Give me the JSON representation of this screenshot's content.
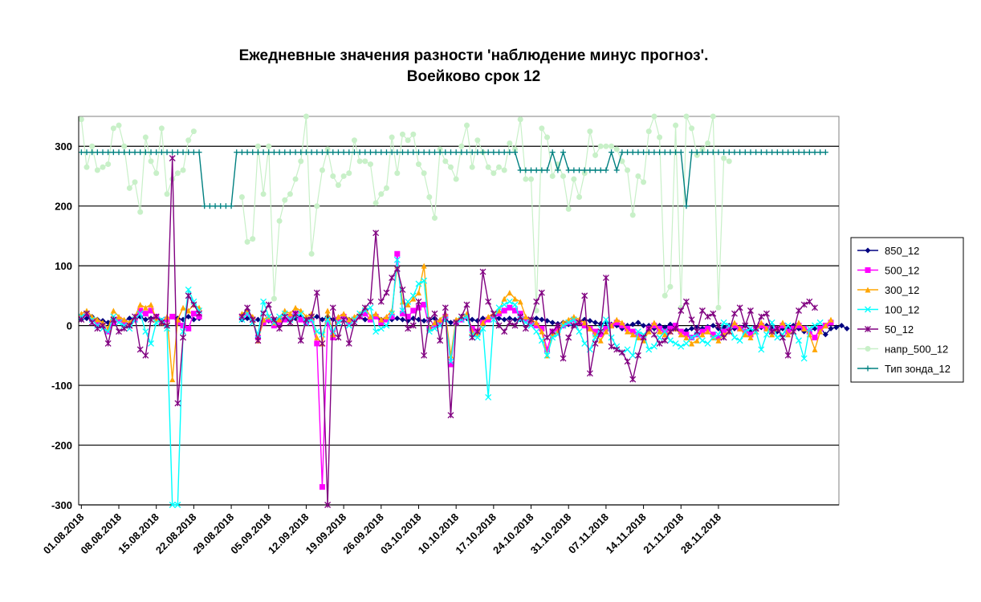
{
  "chart_data": {
    "type": "line",
    "title": "Ежедневные значения разности 'наблюдение минус прогноз'.",
    "subtitle": "Воейково    срок 12",
    "xlabel": "",
    "ylabel": "",
    "ylim": [
      -300,
      350
    ],
    "yticks": [
      "300",
      "200",
      "100",
      "0",
      "-100",
      "-200",
      "-300"
    ],
    "ytick_values": [
      300,
      200,
      100,
      0,
      -100,
      -200,
      -300
    ],
    "x_start": "01.08.2018",
    "x_tick_labels": [
      "01.08.2018",
      "08.08.2018",
      "15.08.2018",
      "22.08.2018",
      "29.08.2018",
      "05.09.2018",
      "12.09.2018",
      "19.09.2018",
      "26.09.2018",
      "03.10.2018",
      "10.10.2018",
      "17.10.2018",
      "24.10.2018",
      "31.10.2018",
      "07.11.2018",
      "14.11.2018",
      "21.11.2018",
      "28.11.2018"
    ],
    "grid": "horizontal",
    "legend_position": "right",
    "series": [
      {
        "name": "850_12",
        "color": "#000080",
        "marker": "diamond",
        "values": [
          10,
          12,
          15,
          10,
          8,
          5,
          12,
          10,
          8,
          12,
          10,
          15,
          10,
          12,
          15,
          8,
          10,
          15,
          12,
          10,
          15,
          10,
          12,
          null,
          null,
          null,
          null,
          null,
          null,
          null,
          10,
          12,
          8,
          10,
          5,
          8,
          10,
          12,
          10,
          8,
          12,
          15,
          10,
          12,
          15,
          10,
          15,
          10,
          12,
          15,
          10,
          12,
          15,
          10,
          12,
          15,
          10,
          12,
          10,
          12,
          10,
          8,
          12,
          10,
          8,
          10,
          12,
          8,
          10,
          5,
          8,
          10,
          12,
          10,
          8,
          12,
          10,
          15,
          12,
          10,
          12,
          10,
          10,
          8,
          10,
          12,
          10,
          8,
          5,
          3,
          5,
          2,
          0,
          5,
          10,
          8,
          5,
          3,
          5,
          2,
          0,
          -5,
          0,
          2,
          5,
          0,
          0,
          -5,
          0,
          -3,
          2,
          -5,
          -10,
          -8,
          -5,
          -3,
          -5,
          -2,
          0,
          -5,
          -3,
          0,
          -5,
          -3,
          0,
          -8,
          -5,
          -3,
          0,
          -5,
          -10,
          -5,
          -3,
          0,
          -5,
          -10,
          -8,
          -5,
          -3,
          -15,
          -5,
          -3,
          0,
          -5
        ]
      },
      {
        "name": "500_12",
        "color": "#FF00FF",
        "marker": "square",
        "values": [
          15,
          20,
          10,
          5,
          0,
          -10,
          5,
          10,
          5,
          0,
          10,
          25,
          20,
          25,
          15,
          5,
          10,
          15,
          5,
          0,
          -5,
          20,
          15,
          null,
          null,
          null,
          null,
          null,
          null,
          null,
          15,
          20,
          10,
          -20,
          5,
          10,
          0,
          5,
          10,
          15,
          20,
          10,
          5,
          10,
          -30,
          -270,
          5,
          -20,
          10,
          15,
          5,
          10,
          15,
          20,
          10,
          15,
          5,
          10,
          15,
          120,
          20,
          15,
          25,
          30,
          35,
          -5,
          0,
          5,
          15,
          -65,
          5,
          10,
          15,
          -5,
          -10,
          5,
          10,
          15,
          20,
          25,
          30,
          25,
          20,
          10,
          5,
          0,
          -5,
          -40,
          -10,
          -5,
          0,
          5,
          10,
          5,
          0,
          -5,
          -10,
          -15,
          -5,
          0,
          5,
          0,
          -5,
          -10,
          -15,
          -20,
          -5,
          0,
          -5,
          -10,
          -5,
          0,
          -10,
          -15,
          -20,
          -15,
          -10,
          -5,
          -15,
          -20,
          -10,
          -5,
          0,
          -5,
          -10,
          -15,
          -5,
          0,
          -5,
          -10,
          -5,
          0,
          -10,
          -5,
          0,
          -5,
          -10,
          -20,
          -5,
          0,
          5
        ]
      },
      {
        "name": "300_12",
        "color": "#FFA500",
        "marker": "triangle",
        "values": [
          20,
          25,
          15,
          10,
          5,
          -5,
          25,
          15,
          10,
          5,
          15,
          35,
          30,
          35,
          10,
          5,
          15,
          -90,
          10,
          30,
          25,
          35,
          30,
          null,
          null,
          null,
          null,
          null,
          null,
          null,
          20,
          25,
          15,
          -25,
          10,
          15,
          5,
          10,
          25,
          20,
          30,
          25,
          15,
          20,
          -20,
          -30,
          25,
          -15,
          15,
          20,
          10,
          15,
          20,
          30,
          15,
          20,
          10,
          15,
          25,
          100,
          40,
          35,
          45,
          55,
          100,
          -5,
          5,
          10,
          20,
          -50,
          10,
          15,
          20,
          -10,
          -15,
          5,
          15,
          20,
          25,
          45,
          55,
          45,
          40,
          15,
          10,
          5,
          -10,
          -50,
          -15,
          -10,
          5,
          10,
          15,
          10,
          5,
          -5,
          -15,
          -25,
          -10,
          0,
          10,
          5,
          -10,
          -15,
          -20,
          -25,
          -10,
          5,
          -10,
          -15,
          -10,
          -5,
          -15,
          -20,
          -30,
          -25,
          -15,
          -10,
          -20,
          -25,
          -15,
          -10,
          5,
          -5,
          -15,
          -20,
          -10,
          5,
          -5,
          -15,
          -5,
          5,
          -15,
          -10,
          5,
          -5,
          -15,
          -40,
          -10,
          0,
          10
        ]
      },
      {
        "name": "100_12",
        "color": "#00FFFF",
        "marker": "x",
        "values": [
          15,
          20,
          10,
          0,
          -5,
          -10,
          15,
          5,
          0,
          -5,
          10,
          20,
          -10,
          -30,
          5,
          10,
          -5,
          -300,
          -300,
          -10,
          60,
          40,
          25,
          null,
          null,
          null,
          null,
          null,
          null,
          null,
          10,
          20,
          5,
          -15,
          40,
          15,
          5,
          15,
          20,
          10,
          15,
          20,
          5,
          10,
          -10,
          -15,
          10,
          -10,
          5,
          10,
          0,
          10,
          20,
          25,
          30,
          -10,
          -5,
          0,
          20,
          110,
          25,
          40,
          50,
          70,
          75,
          -10,
          -5,
          0,
          10,
          -60,
          5,
          10,
          15,
          -15,
          -20,
          -5,
          -120,
          10,
          30,
          35,
          40,
          35,
          10,
          5,
          0,
          -10,
          -25,
          -50,
          -20,
          -15,
          0,
          5,
          10,
          -10,
          -30,
          -40,
          -20,
          -5,
          10,
          -20,
          -35,
          -45,
          -40,
          -50,
          -10,
          -15,
          -40,
          -35,
          -20,
          -10,
          -25,
          -30,
          -35,
          -30,
          -20,
          -15,
          -25,
          -30,
          -20,
          -15,
          5,
          0,
          -20,
          -25,
          -10,
          -5,
          -10,
          -40,
          -15,
          5,
          -20,
          -15,
          0,
          -10,
          -25,
          -55,
          -5,
          0,
          5
        ]
      },
      {
        "name": "50_12",
        "color": "#800080",
        "marker": "star",
        "values": [
          10,
          20,
          5,
          -5,
          0,
          -30,
          10,
          -10,
          -5,
          0,
          15,
          -40,
          -50,
          10,
          15,
          5,
          0,
          280,
          -130,
          -20,
          50,
          35,
          20,
          null,
          null,
          null,
          null,
          null,
          null,
          null,
          15,
          30,
          10,
          -25,
          20,
          35,
          10,
          -5,
          15,
          5,
          20,
          -25,
          10,
          15,
          55,
          -30,
          -300,
          30,
          -20,
          10,
          -30,
          5,
          15,
          30,
          40,
          155,
          40,
          55,
          80,
          95,
          60,
          -5,
          0,
          40,
          -50,
          10,
          20,
          -25,
          30,
          -150,
          5,
          15,
          35,
          -20,
          -10,
          90,
          40,
          20,
          0,
          -10,
          5,
          0,
          15,
          -5,
          10,
          40,
          55,
          -20,
          -10,
          0,
          -55,
          -20,
          0,
          5,
          50,
          -80,
          -30,
          -10,
          80,
          -35,
          -40,
          -45,
          -60,
          -90,
          -50,
          -20,
          -5,
          -15,
          -30,
          -25,
          -10,
          -5,
          25,
          40,
          10,
          -10,
          25,
          15,
          20,
          0,
          -20,
          -10,
          20,
          30,
          0,
          25,
          -5,
          15,
          20,
          -10,
          -5,
          -20,
          -50,
          -10,
          25,
          35,
          40,
          30
        ]
      },
      {
        "name": "напр_500_12",
        "color": "#C8F0C8",
        "marker": "circle",
        "values": [
          345,
          265,
          300,
          260,
          265,
          270,
          330,
          335,
          300,
          230,
          240,
          190,
          315,
          275,
          255,
          330,
          220,
          245,
          255,
          260,
          310,
          325,
          null,
          null,
          null,
          null,
          null,
          null,
          null,
          null,
          215,
          140,
          145,
          300,
          220,
          300,
          45,
          175,
          210,
          220,
          245,
          275,
          350,
          120,
          200,
          260,
          295,
          250,
          235,
          250,
          255,
          310,
          275,
          275,
          270,
          205,
          220,
          230,
          315,
          255,
          320,
          310,
          320,
          270,
          255,
          215,
          180,
          295,
          275,
          265,
          245,
          300,
          335,
          265,
          310,
          290,
          265,
          255,
          265,
          260,
          305,
          295,
          345,
          245,
          245,
          25,
          330,
          315,
          250,
          270,
          250,
          195,
          245,
          215,
          255,
          325,
          285,
          300,
          300,
          300,
          295,
          275,
          260,
          185,
          250,
          240,
          325,
          350,
          315,
          50,
          65,
          335,
          30,
          350,
          330,
          285,
          295,
          305,
          350,
          30,
          280,
          275
        ]
      },
      {
        "name": "Тип зонда_12",
        "color": "#008080",
        "marker": "plus",
        "values": [
          290,
          290,
          290,
          290,
          290,
          290,
          290,
          290,
          290,
          290,
          290,
          290,
          290,
          290,
          290,
          290,
          290,
          290,
          290,
          290,
          290,
          290,
          290,
          200,
          200,
          200,
          200,
          200,
          200,
          290,
          290,
          290,
          290,
          290,
          290,
          290,
          290,
          290,
          290,
          290,
          290,
          290,
          290,
          290,
          290,
          290,
          290,
          290,
          290,
          290,
          290,
          290,
          290,
          290,
          290,
          290,
          290,
          290,
          290,
          290,
          290,
          290,
          290,
          290,
          290,
          290,
          290,
          290,
          290,
          290,
          290,
          290,
          290,
          290,
          290,
          290,
          290,
          290,
          290,
          290,
          290,
          290,
          260,
          260,
          260,
          260,
          260,
          260,
          290,
          260,
          290,
          260,
          260,
          260,
          260,
          260,
          260,
          260,
          260,
          290,
          260,
          290,
          290,
          290,
          290,
          290,
          290,
          290,
          290,
          290,
          290,
          290,
          290,
          200,
          290,
          290,
          290,
          290,
          290,
          290,
          290,
          290,
          290,
          290,
          290,
          290,
          290,
          290,
          290,
          290,
          290,
          290,
          290,
          290,
          290,
          290,
          290,
          290,
          290,
          290
        ]
      }
    ]
  }
}
